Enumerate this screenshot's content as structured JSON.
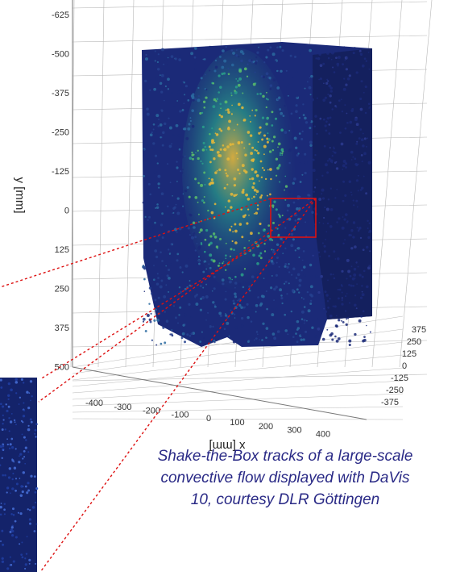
{
  "figure": {
    "y_axis": {
      "title": "y [mm]",
      "ticks": [
        "-625",
        "-500",
        "-375",
        "-250",
        "-125",
        "0",
        "125",
        "250",
        "375",
        "500"
      ]
    },
    "x_axis": {
      "title": "x [mm]",
      "ticks": [
        "-400",
        "-300",
        "-200",
        "-100",
        "0",
        "100",
        "200",
        "300",
        "400"
      ]
    },
    "z_axis": {
      "ticks": [
        "375",
        "250",
        "125",
        "0",
        "-125",
        "-250",
        "-375"
      ]
    },
    "colors": {
      "background": "#ffffff",
      "grid": "#b8b8b8",
      "particle_low": "#1b2a78",
      "particle_mid": "#2aa08a",
      "particle_high": "#e6b83a",
      "highlight_box": "#dd1111",
      "caption": "#2a2a86"
    }
  },
  "caption": {
    "lines": [
      "Shake-the-Box tracks of a large-scale",
      "convective flow displayed with DaVis",
      "10, courtesy DLR Göttingen"
    ]
  }
}
